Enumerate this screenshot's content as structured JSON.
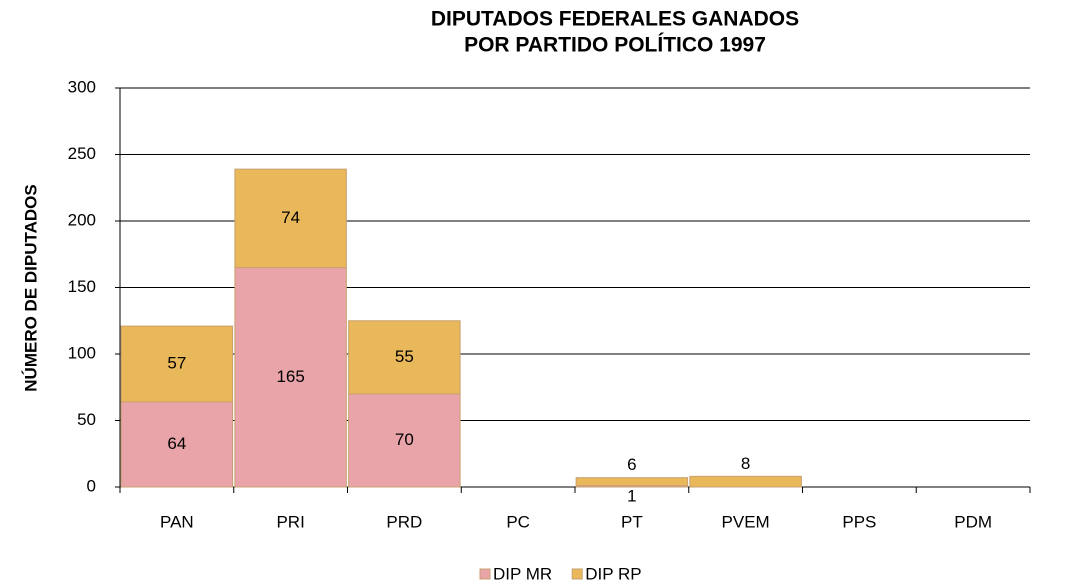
{
  "chart_data": {
    "type": "stacked-bar",
    "title": [
      "DIPUTADOS FEDERALES GANADOS",
      "POR PARTIDO POLÍTICO 1997"
    ],
    "y_label": "NÚMERO DE DIPUTADOS",
    "categories": [
      "PAN",
      "PRI",
      "PRD",
      "PC",
      "PT",
      "PVEM",
      "PPS",
      "PDM"
    ],
    "series": [
      {
        "name": "DIP MR",
        "color": "#e8a4a8",
        "values": [
          64,
          165,
          70,
          null,
          1,
          null,
          null,
          null
        ]
      },
      {
        "name": "DIP RP",
        "color": "#e9b85a",
        "values": [
          57,
          74,
          55,
          null,
          6,
          8,
          null,
          null
        ]
      }
    ],
    "ylim": [
      0,
      300
    ],
    "yticks": [
      0,
      50,
      100,
      150,
      200,
      250,
      300
    ],
    "grid": true,
    "legend": "bottom"
  }
}
